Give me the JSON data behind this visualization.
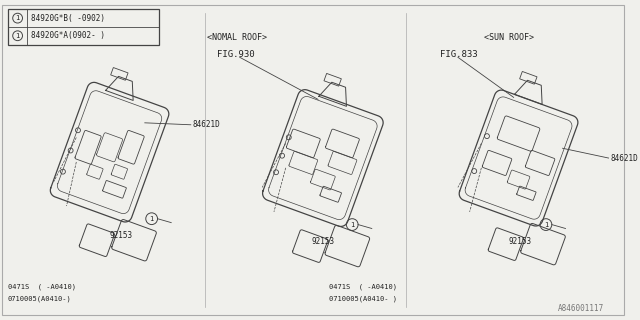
{
  "bg_color": "#f0f0ec",
  "line_color": "#444444",
  "text_color": "#222222",
  "fig_width": 6.4,
  "fig_height": 3.2,
  "dpi": 100,
  "legend_lines": [
    "84920G*B( -0902)",
    "84920G*A(0902- )"
  ],
  "fig930_text": "FIG.930",
  "fig833_text": "FIG.833",
  "part_84621D": "84621D",
  "part_92153": "92153",
  "label_normal_roof": "<NOMAL ROOF>",
  "label_sun_roof": "<SUN ROOF>",
  "code_left": [
    "0471S  ( -A0410)",
    "0710005(A0410-)"
  ],
  "code_mid": [
    "0471S  ( -A0410)",
    "0710005(A0410- )"
  ],
  "part_id": "A846001117"
}
